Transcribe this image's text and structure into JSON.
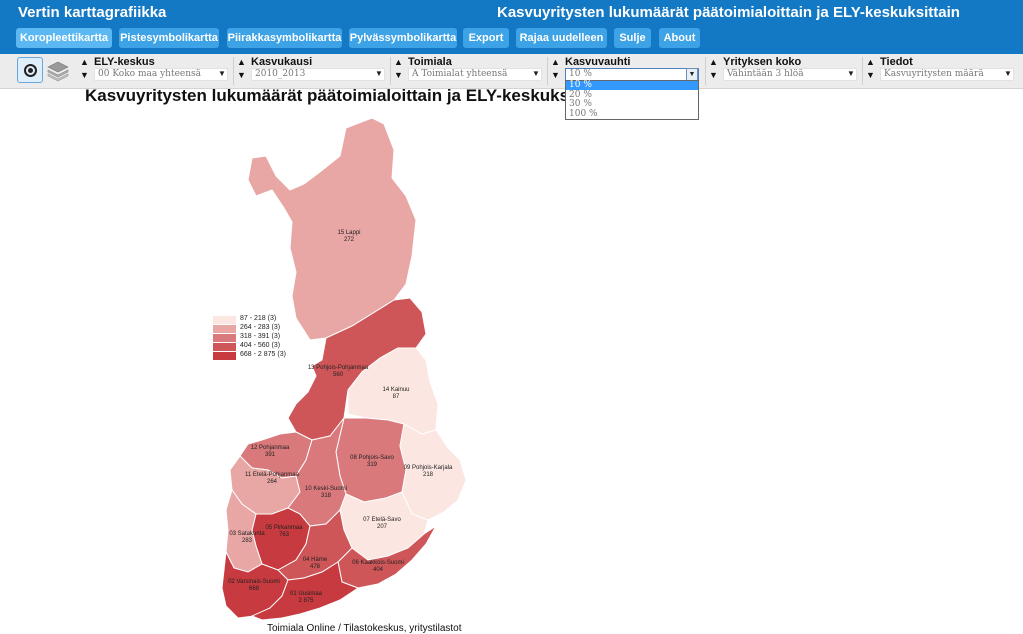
{
  "header": {
    "app_title": "Vertin karttagrafiikka",
    "title": "Kasvuyritysten lukumäärät päätoimialoittain ja ELY-keskuksittain"
  },
  "nav": {
    "items": [
      {
        "label": "Koropleettikartta",
        "active": true
      },
      {
        "label": "Pistesymbolikartta"
      },
      {
        "label": "Piirakkasymbolikartta"
      },
      {
        "label": "Pylvässymbolikartta"
      },
      {
        "label": "Export"
      },
      {
        "label": "Rajaa uudelleen"
      },
      {
        "label": "Sulje"
      },
      {
        "label": "About"
      }
    ]
  },
  "toolbar": {
    "icons": [
      "radio-target-icon",
      "layers-icon"
    ],
    "filters": [
      {
        "label": "ELY-keskus",
        "value": "00 Koko maa yhteensä"
      },
      {
        "label": "Kasvukausi",
        "value": "2010_2013"
      },
      {
        "label": "Toimiala",
        "value": "A Toimialat yhteensä"
      },
      {
        "label": "Kasvuvauhti",
        "value": "10 %"
      },
      {
        "label": "Yrityksen koko",
        "value": "Vähintään 3 hlöä"
      },
      {
        "label": "Tiedot",
        "value": "Kasvuyritysten määrä"
      }
    ]
  },
  "dropdown": {
    "options": [
      "10 %",
      "20 %",
      "30 %",
      "100 %"
    ],
    "selected": "10 %"
  },
  "map": {
    "title": "Kasvuyritysten lukumäärät päätoimialoittain ja ELY-keskuksittain",
    "source": "Toimiala Online / Tilastokeskus, yritystilastot",
    "legend": [
      {
        "label": "87 - 218 (3)",
        "color": "#fbe6e1"
      },
      {
        "label": "264 - 283 (3)",
        "color": "#e8a6a4"
      },
      {
        "label": "318 - 391 (3)",
        "color": "#d9797c"
      },
      {
        "label": "404 - 560 (3)",
        "color": "#cf5658"
      },
      {
        "label": "668 - 2 875 (3)",
        "color": "#c73a3f"
      }
    ],
    "regions": [
      {
        "name": "15 Lappi",
        "value": "272"
      },
      {
        "name": "13 Pohjois-Pohjanmaa",
        "value": "560"
      },
      {
        "name": "14 Kainuu",
        "value": "87"
      },
      {
        "name": "12 Pohjanmaa",
        "value": "391"
      },
      {
        "name": "11 Etelä-Pohjanmaa",
        "value": "264"
      },
      {
        "name": "08 Pohjois-Savo",
        "value": "319"
      },
      {
        "name": "09 Pohjois-Karjala",
        "value": "218"
      },
      {
        "name": "10 Keski-Suomi",
        "value": "318"
      },
      {
        "name": "05 Pirkanmaa",
        "value": "763"
      },
      {
        "name": "07 Etelä-Savo",
        "value": "207"
      },
      {
        "name": "03 Satakunta",
        "value": "283"
      },
      {
        "name": "04 Häme",
        "value": "478"
      },
      {
        "name": "06 Kaakkois-Suomi",
        "value": "404"
      },
      {
        "name": "02 Varsinais-Suomi",
        "value": "668"
      },
      {
        "name": "01 Uusimaa",
        "value": "2 875"
      }
    ]
  }
}
